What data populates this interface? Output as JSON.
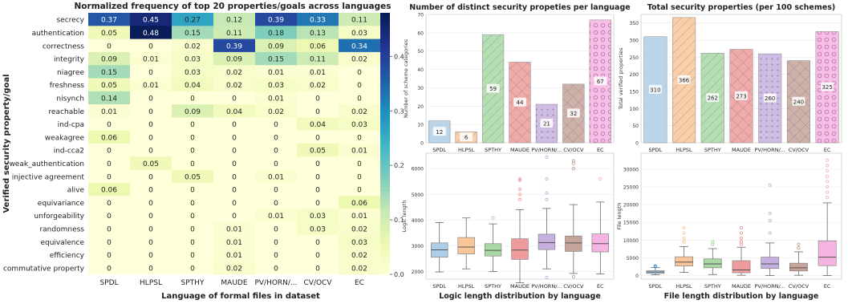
{
  "chart_data": [
    {
      "type": "heatmap",
      "title": "Normalized frequency of top 20 properties/goals across languages",
      "xlabel": "Language of formal files in dataset",
      "ylabel": "Verified security property/goal",
      "columns": [
        "SPDL",
        "HLPSL",
        "SPTHY",
        "MAUDE",
        "PV/HORN/...",
        "CV/OCV",
        "EC"
      ],
      "rows": [
        "secrecy",
        "authentication",
        "correctness",
        "integrity",
        "niagree",
        "freshness",
        "nisynch",
        "reachable",
        "ind-cpa",
        "weakagree",
        "ind-cca2",
        "weak_authentication",
        "injective agreement",
        "alive",
        "equivariance",
        "unforgeability",
        "randomness",
        "equivalence",
        "efficiency",
        "commutative property"
      ],
      "values": [
        [
          0.37,
          0.45,
          0.27,
          0.12,
          0.39,
          0.33,
          0.11
        ],
        [
          0.05,
          0.48,
          0.15,
          0.11,
          0.18,
          0.13,
          0.03
        ],
        [
          0.0,
          0.0,
          0.02,
          0.39,
          0.09,
          0.06,
          0.34
        ],
        [
          0.09,
          0.01,
          0.03,
          0.09,
          0.15,
          0.11,
          0.02
        ],
        [
          0.15,
          0.0,
          0.03,
          0.02,
          0.01,
          0.01,
          0.0
        ],
        [
          0.05,
          0.01,
          0.04,
          0.02,
          0.03,
          0.02,
          0.0
        ],
        [
          0.14,
          0.0,
          0.0,
          0.0,
          0.01,
          0.0,
          0.0
        ],
        [
          0.01,
          0.0,
          0.09,
          0.04,
          0.02,
          0.0,
          0.02
        ],
        [
          0.0,
          0.0,
          0.0,
          0.0,
          0.0,
          0.04,
          0.03
        ],
        [
          0.06,
          0.0,
          0.0,
          0.0,
          0.0,
          0.0,
          0.0
        ],
        [
          0.0,
          0.0,
          0.0,
          0.0,
          0.0,
          0.05,
          0.01
        ],
        [
          0.0,
          0.05,
          0.0,
          0.0,
          0.0,
          0.0,
          0.0
        ],
        [
          0.0,
          0.0,
          0.05,
          0.0,
          0.01,
          0.0,
          0.0
        ],
        [
          0.06,
          0.0,
          0.0,
          0.0,
          0.0,
          0.0,
          0.0
        ],
        [
          0.0,
          0.0,
          0.0,
          0.0,
          0.0,
          0.0,
          0.06
        ],
        [
          0.0,
          0.0,
          0.0,
          0.0,
          0.01,
          0.03,
          0.01
        ],
        [
          0.0,
          0.0,
          0.0,
          0.01,
          0.0,
          0.03,
          0.02
        ],
        [
          0.0,
          0.0,
          0.0,
          0.01,
          0.0,
          0.0,
          0.03
        ],
        [
          0.0,
          0.0,
          0.0,
          0.01,
          0.0,
          0.0,
          0.02
        ],
        [
          0.0,
          0.0,
          0.0,
          0.02,
          0.0,
          0.0,
          0.02
        ]
      ],
      "colorbar": {
        "ticks": [
          "0.0",
          "0.1",
          "0.2",
          "0.3",
          "0.4"
        ],
        "max": 0.48,
        "colormap": "YlGnBu"
      }
    },
    {
      "type": "bar",
      "title": "Number of distinct security propeties per language",
      "ylabel": "Number of scheme categories",
      "categories": [
        "SPDL",
        "HLPSL",
        "SPTHY",
        "MAUDE",
        "PV/HORN/...",
        "CV/OCV",
        "EC"
      ],
      "values": [
        12,
        6,
        59,
        44,
        21,
        32,
        67
      ],
      "ylim": [
        0,
        70
      ],
      "yticks": [
        "0",
        "10",
        "20",
        "30",
        "40",
        "50",
        "60",
        "70"
      ],
      "colors": [
        "#aecde6",
        "#f9c69a",
        "#a9d8a4",
        "#ef9b9b",
        "#c5b0e0",
        "#c6a49a",
        "#f5b4e1"
      ],
      "hatches": [
        "none",
        "diag",
        "diag",
        "cross",
        "dots",
        "cross",
        "circles"
      ]
    },
    {
      "type": "bar",
      "title": "Total security properties (per 100 schemes)",
      "ylabel": "Total verified properties",
      "categories": [
        "SPDL",
        "HLPSL",
        "SPTHY",
        "MAUDE",
        "PV/HORN/...",
        "CV/OCV",
        "EC"
      ],
      "values": [
        310,
        366,
        262,
        273,
        260,
        240,
        325
      ],
      "ylim": [
        0,
        375
      ],
      "yticks": [
        "0",
        "50",
        "100",
        "150",
        "200",
        "250",
        "300",
        "350"
      ],
      "colors": [
        "#aecde6",
        "#f9c69a",
        "#a9d8a4",
        "#ef9b9b",
        "#c5b0e0",
        "#c6a49a",
        "#f5b4e1"
      ],
      "hatches": [
        "none",
        "diag",
        "diag",
        "cross",
        "dots",
        "cross",
        "circles"
      ]
    },
    {
      "type": "box",
      "title": "Logic length distribution by language",
      "ylabel": "Logic length",
      "categories": [
        "SPDL",
        "HLPSL",
        "SPTHY",
        "MAUDE",
        "PV/HORN/...",
        "CV/OCV",
        "EC"
      ],
      "ylim": [
        1700,
        6600
      ],
      "yticks": [
        "2000",
        "3000",
        "4000",
        "5000",
        "6000"
      ],
      "boxes": [
        {
          "q1": 2550,
          "median": 2840,
          "q3": 3110,
          "wl": 1980,
          "wh": 3900,
          "fliers": []
        },
        {
          "q1": 2680,
          "median": 2950,
          "q3": 3320,
          "wl": 2100,
          "wh": 4080,
          "fliers": []
        },
        {
          "q1": 2600,
          "median": 2820,
          "q3": 3080,
          "wl": 2000,
          "wh": 3850,
          "fliers": [
            4080
          ]
        },
        {
          "q1": 2470,
          "median": 2830,
          "q3": 3270,
          "wl": 1560,
          "wh": 4400,
          "fliers": [
            4800,
            5000,
            5200,
            5550,
            5600
          ]
        },
        {
          "q1": 2850,
          "median": 3120,
          "q3": 3450,
          "wl": 2100,
          "wh": 4450,
          "fliers": [
            1760,
            4800,
            5050,
            5600,
            6450
          ]
        },
        {
          "q1": 2780,
          "median": 3110,
          "q3": 3380,
          "wl": 1920,
          "wh": 4600,
          "fliers": [
            1800,
            6000,
            6200,
            6300
          ]
        },
        {
          "q1": 2760,
          "median": 3080,
          "q3": 3460,
          "wl": 1900,
          "wh": 4700,
          "fliers": [
            5600
          ]
        }
      ],
      "colors": [
        "#aecde6",
        "#f9c69a",
        "#a9d8a4",
        "#ef9b9b",
        "#c5b0e0",
        "#c6a49a",
        "#f5b4e1"
      ]
    },
    {
      "type": "box",
      "title": "File length distribution by language",
      "ylabel": "File length",
      "categories": [
        "SPDL",
        "HLPSL",
        "SPTHY",
        "MAUDE",
        "PV/HORN/...",
        "CV/OCV",
        "EC"
      ],
      "ylim": [
        -1000,
        34500
      ],
      "yticks": [
        "0",
        "5000",
        "10000",
        "15000",
        "20000",
        "25000",
        "30000"
      ],
      "boxes": [
        {
          "q1": 600,
          "median": 1000,
          "q3": 1400,
          "wl": 200,
          "wh": 2300,
          "fliers": [
            2500,
            2700
          ]
        },
        {
          "q1": 2700,
          "median": 3800,
          "q3": 5300,
          "wl": 900,
          "wh": 8200,
          "fliers": [
            9500,
            10500,
            12000,
            13500
          ]
        },
        {
          "q1": 2200,
          "median": 3300,
          "q3": 4700,
          "wl": 300,
          "wh": 7600,
          "fliers": [
            8800,
            9500
          ]
        },
        {
          "q1": 800,
          "median": 1600,
          "q3": 4200,
          "wl": 100,
          "wh": 8000,
          "fliers": [
            8800,
            9500,
            10500,
            12000,
            13500
          ]
        },
        {
          "q1": 2000,
          "median": 3300,
          "q3": 5200,
          "wl": 0,
          "wh": 9200,
          "fliers": [
            12000,
            15500,
            17500,
            25500
          ]
        },
        {
          "q1": 1300,
          "median": 2200,
          "q3": 3500,
          "wl": 100,
          "wh": 6700,
          "fliers": [
            7800,
            8800
          ]
        },
        {
          "q1": 2800,
          "median": 5200,
          "q3": 9800,
          "wl": 0,
          "wh": 20500,
          "fliers": [
            22000,
            23500,
            25000,
            26500,
            28000,
            29500,
            31000,
            32500
          ]
        }
      ],
      "colors": [
        "#aecde6",
        "#f9c69a",
        "#a9d8a4",
        "#ef9b9b",
        "#c5b0e0",
        "#c6a49a",
        "#f5b4e1"
      ]
    }
  ]
}
